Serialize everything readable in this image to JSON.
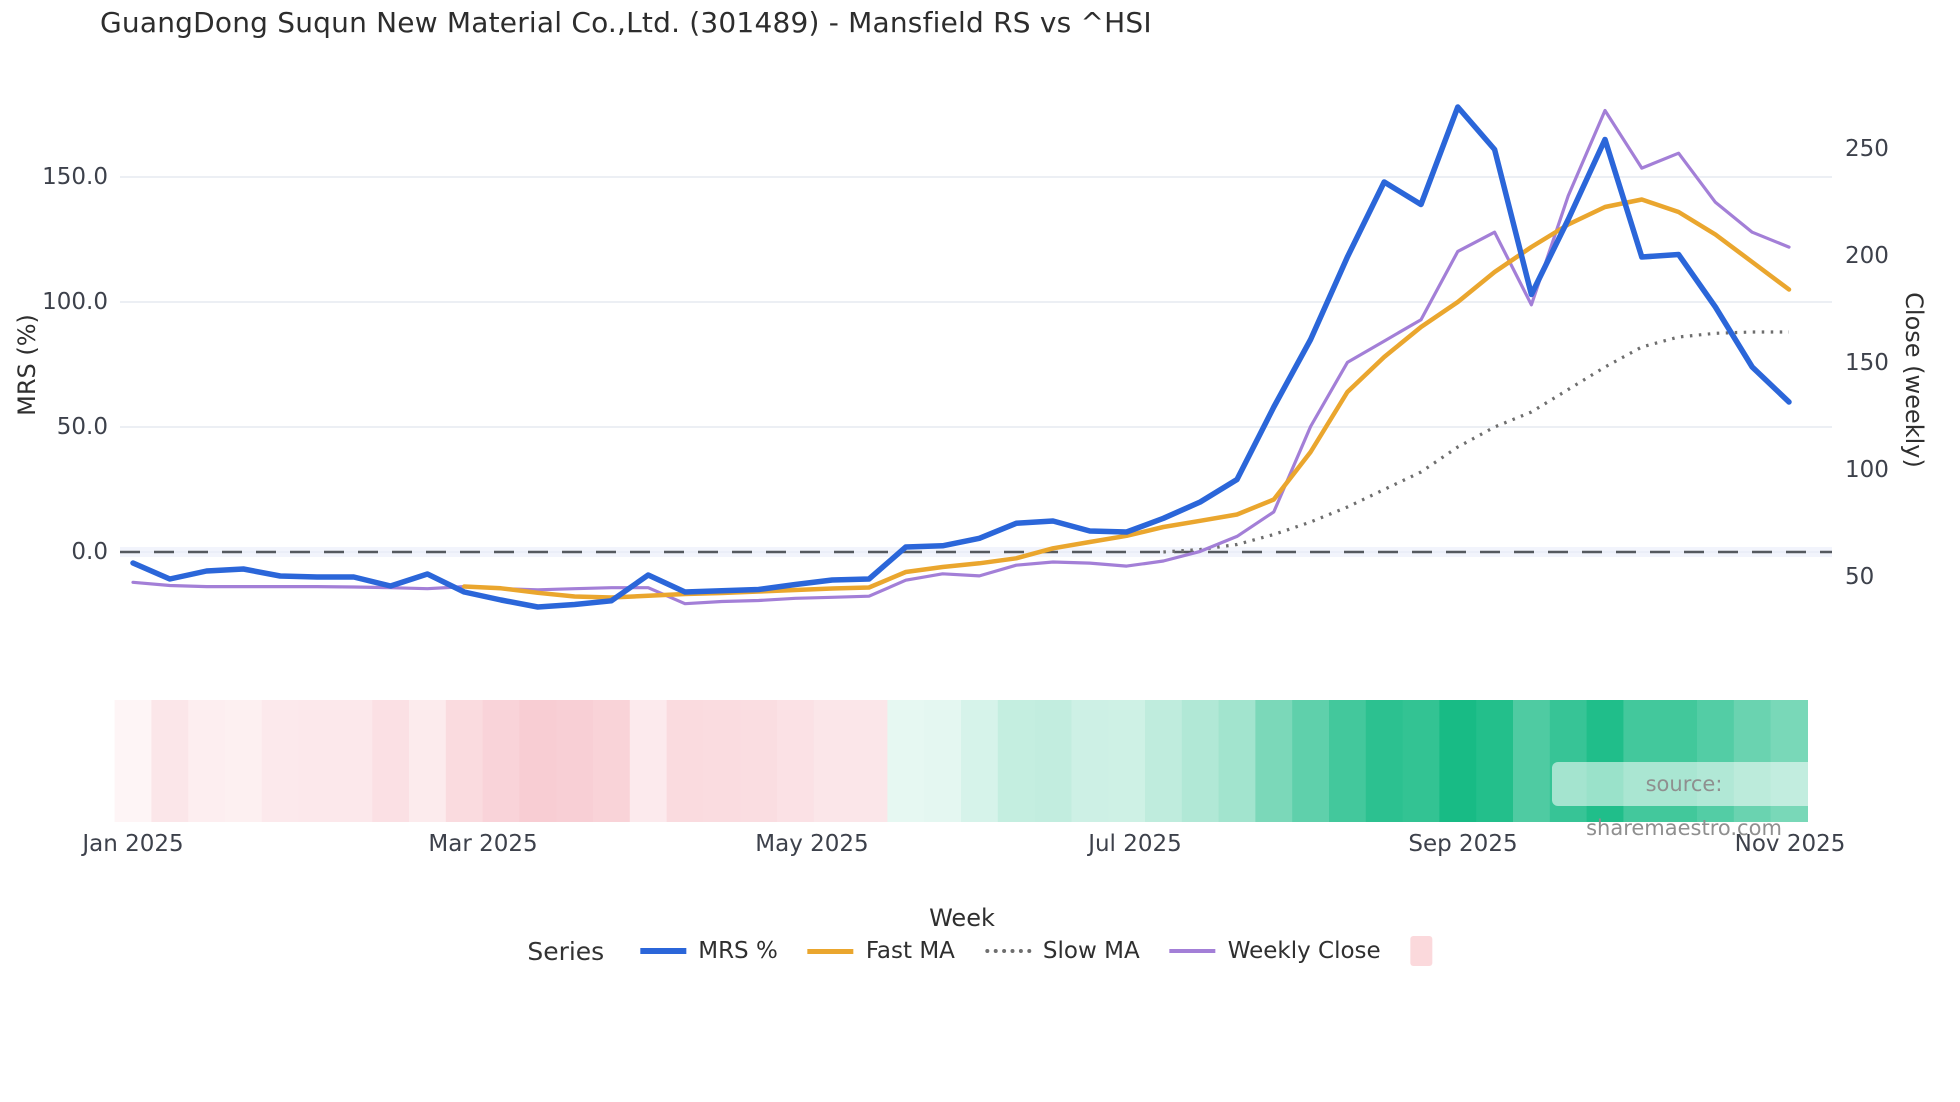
{
  "title": "GuangDong Suqun New Material Co.,Ltd. (301489) - Mansfield RS vs ^HSI",
  "source": "source: sharemaestro.com",
  "axes": {
    "x_label": "Week",
    "y_left_label": "MRS (%)",
    "y_right_label": "Close (weekly)",
    "x_ticks": [
      "Jan 2025",
      "Mar 2025",
      "May 2025",
      "Jul 2025",
      "Sep 2025",
      "Nov 2025"
    ],
    "y_left_ticks": [
      "150.0",
      "100.0",
      "50.0",
      "0.0"
    ],
    "y_right_ticks": [
      "250",
      "200",
      "150",
      "100",
      "50"
    ]
  },
  "legend": {
    "title": "Series",
    "items": [
      {
        "label": "MRS %",
        "color": "#2b66d9",
        "style": "solid",
        "thickness": 6
      },
      {
        "label": "Fast MA",
        "color": "#eaa62e",
        "style": "solid",
        "thickness": 5
      },
      {
        "label": "Slow MA",
        "color": "#6e6e6e",
        "style": "dotted",
        "thickness": 4
      },
      {
        "label": "Weekly Close",
        "color": "#a37fd7",
        "style": "solid",
        "thickness": 4
      },
      {
        "label": "",
        "color": "#fbd9dc",
        "style": "square",
        "thickness": 0
      }
    ]
  },
  "chart_data": {
    "type": "line",
    "title": "GuangDong Suqun New Material Co.,Ltd. (301489) - Mansfield RS vs ^HSI",
    "xlabel": "Week",
    "ylabel_left": "MRS (%)",
    "ylabel_right": "Close (weekly)",
    "x_unit": "week_index",
    "weeks": 46,
    "x_tick_labels": [
      "Jan 2025",
      "Mar 2025",
      "May 2025",
      "Jul 2025",
      "Sep 2025",
      "Nov 2025"
    ],
    "x_tick_week_positions": [
      0,
      9.5,
      18.4,
      27.2,
      36.1,
      45
    ],
    "y_left_ticks": [
      150,
      100,
      50,
      0
    ],
    "y_right_ticks": [
      250,
      200,
      150,
      100,
      50
    ],
    "zero_reference_line": 0,
    "grid": true,
    "legend_position": "bottom",
    "series": [
      {
        "name": "MRS %",
        "axis": "left",
        "color": "#2b66d9",
        "style": "solid",
        "width": 5.5,
        "values": [
          -4.4,
          -10.8,
          -7.6,
          -6.8,
          -9.6,
          -10,
          -10,
          -13.6,
          -8.8,
          -16,
          -19.2,
          -22,
          -21,
          -19.5,
          -9.2,
          -16,
          -15.5,
          -15,
          -13,
          -11.2,
          -10.8,
          2,
          2.5,
          5.5,
          11.5,
          12.4,
          8.4,
          8,
          13.5,
          20,
          29,
          58,
          85,
          118,
          148,
          139,
          178,
          161,
          103,
          133,
          165,
          118,
          119,
          98,
          74,
          60
        ]
      },
      {
        "name": "Fast MA",
        "axis": "left",
        "color": "#eaa62e",
        "style": "solid",
        "width": 4.5,
        "values": [
          null,
          null,
          null,
          null,
          null,
          null,
          null,
          null,
          null,
          -13.8,
          -14.5,
          -16.3,
          -17.8,
          -18.2,
          -17.5,
          -16.8,
          -16.4,
          -15.8,
          -15.2,
          -14.6,
          -14.2,
          -8,
          -6,
          -4.5,
          -2.5,
          1.5,
          4,
          6.5,
          10,
          12.5,
          15,
          21,
          40,
          64,
          78,
          90,
          100,
          112,
          122,
          131,
          138,
          141,
          136,
          127,
          116,
          105
        ]
      },
      {
        "name": "Slow MA",
        "axis": "left",
        "color": "#6e6e6e",
        "style": "dotted",
        "width": 3.2,
        "values": [
          null,
          null,
          null,
          null,
          null,
          null,
          null,
          null,
          null,
          null,
          null,
          null,
          null,
          null,
          null,
          null,
          null,
          null,
          null,
          null,
          null,
          null,
          null,
          null,
          null,
          null,
          null,
          null,
          0,
          1,
          3,
          7,
          12,
          18,
          25,
          32,
          42,
          50,
          56,
          65,
          74,
          82,
          86,
          87.5,
          88,
          88
        ]
      },
      {
        "name": "Weekly Close",
        "axis": "right",
        "color": "#a37fd7",
        "style": "solid",
        "width": 3.2,
        "values": [
          47,
          45.5,
          45,
          45,
          45,
          45,
          44.8,
          44.5,
          44,
          45,
          44,
          43.5,
          44,
          44.5,
          44.5,
          37,
          38,
          38.5,
          39.5,
          40,
          40.5,
          48,
          51,
          50,
          55,
          56.5,
          56,
          54.6,
          57,
          61.5,
          68.5,
          80,
          120,
          150,
          160,
          170,
          202,
          211,
          177,
          228,
          268,
          241,
          248,
          225,
          211,
          204
        ]
      }
    ],
    "heat_band": {
      "basis": "MRS % sign and magnitude per week",
      "negative_color": "#ed8291",
      "positive_color": "#10b981"
    }
  }
}
